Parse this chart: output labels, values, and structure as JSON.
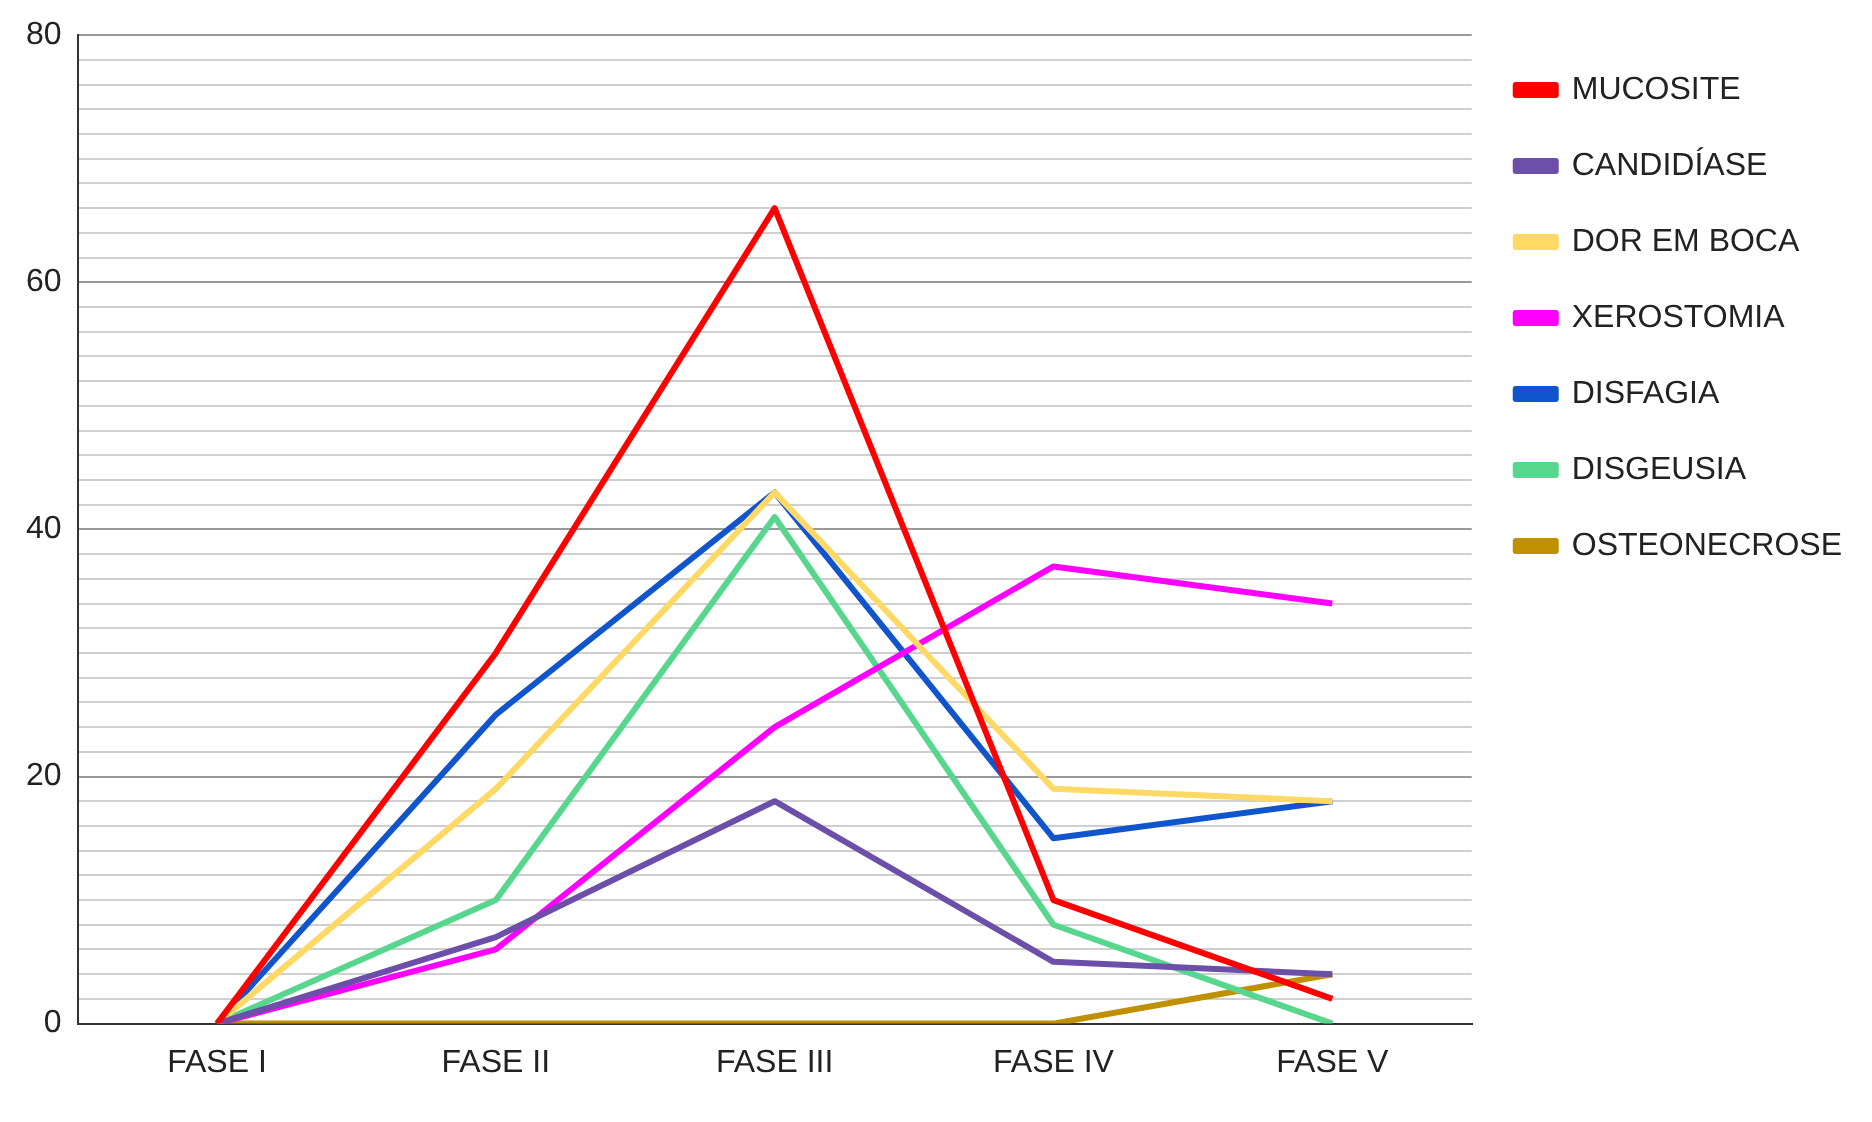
{
  "chart_data": {
    "type": "line",
    "categories": [
      "FASE I",
      "FASE II",
      "FASE III",
      "FASE IV",
      "FASE V"
    ],
    "series": [
      {
        "name": "MUCOSITE",
        "color": "#ff0000",
        "values": [
          0,
          30,
          66,
          10,
          2
        ]
      },
      {
        "name": "CANDIDÍASE",
        "color": "#6b4fa8",
        "values": [
          0,
          7,
          18,
          5,
          4
        ]
      },
      {
        "name": "DOR EM BOCA",
        "color": "#ffd966",
        "values": [
          0,
          19,
          43,
          19,
          18
        ]
      },
      {
        "name": "XEROSTOMIA",
        "color": "#ff00ff",
        "values": [
          0,
          6,
          24,
          37,
          34
        ]
      },
      {
        "name": "DISFAGIA",
        "color": "#1155cc",
        "values": [
          0,
          25,
          43,
          15,
          18
        ]
      },
      {
        "name": "DISGEUSIA",
        "color": "#57d68d",
        "values": [
          0,
          10,
          41,
          8,
          0
        ]
      },
      {
        "name": "OSTEONECROSE",
        "color": "#bf9000",
        "values": [
          0,
          0,
          0,
          0,
          4
        ]
      }
    ],
    "ylim": [
      0,
      80
    ],
    "yticks": [
      0,
      {
        "value": 2,
        "label": null
      },
      {
        "value": 4,
        "label": null
      },
      {
        "value": 6,
        "label": null
      },
      {
        "value": 8,
        "label": null
      },
      {
        "value": 10,
        "label": null
      },
      {
        "value": 12,
        "label": null
      },
      {
        "value": 14,
        "label": null
      },
      {
        "value": 16,
        "label": null
      },
      {
        "value": 18,
        "label": null
      },
      20,
      {
        "value": 22,
        "label": null
      },
      {
        "value": 24,
        "label": null
      },
      {
        "value": 26,
        "label": null
      },
      {
        "value": 28,
        "label": null
      },
      {
        "value": 30,
        "label": null
      },
      {
        "value": 32,
        "label": null
      },
      {
        "value": 34,
        "label": null
      },
      {
        "value": 36,
        "label": null
      },
      {
        "value": 38,
        "label": null
      },
      40,
      {
        "value": 42,
        "label": null
      },
      {
        "value": 44,
        "label": null
      },
      {
        "value": 46,
        "label": null
      },
      {
        "value": 48,
        "label": null
      },
      {
        "value": 50,
        "label": null
      },
      {
        "value": 52,
        "label": null
      },
      {
        "value": 54,
        "label": null
      },
      {
        "value": 56,
        "label": null
      },
      {
        "value": 58,
        "label": null
      },
      60,
      {
        "value": 62,
        "label": null
      },
      {
        "value": 64,
        "label": null
      },
      {
        "value": 66,
        "label": null
      },
      {
        "value": 68,
        "label": null
      },
      {
        "value": 70,
        "label": null
      },
      {
        "value": 72,
        "label": null
      },
      {
        "value": 74,
        "label": null
      },
      {
        "value": 76,
        "label": null
      },
      {
        "value": 78,
        "label": null
      },
      80
    ],
    "grid": "y",
    "legend": "right",
    "marker": "none",
    "line_style": "solid"
  }
}
